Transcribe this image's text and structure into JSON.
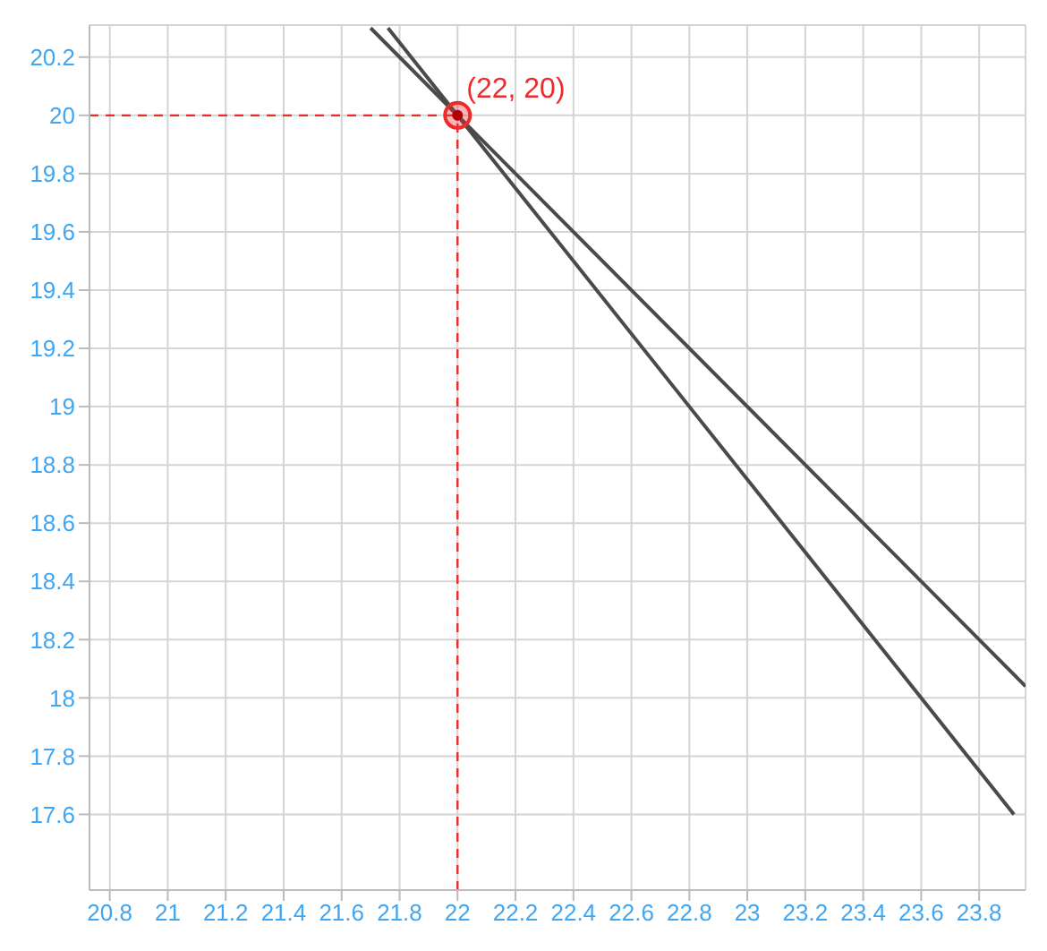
{
  "chart_data": {
    "type": "line",
    "xlim": [
      20.73,
      23.96
    ],
    "ylim": [
      17.34,
      20.31
    ],
    "xticks": [
      20.8,
      21,
      21.2,
      21.4,
      21.6,
      21.8,
      22,
      22.2,
      22.4,
      22.6,
      22.8,
      23,
      23.2,
      23.4,
      23.6,
      23.8
    ],
    "yticks": [
      17.6,
      17.8,
      18,
      18.2,
      18.4,
      18.6,
      18.8,
      19,
      19.2,
      19.4,
      19.6,
      19.8,
      20,
      20.2
    ],
    "grid": true,
    "marker": "none",
    "line_style": "solid",
    "series": [
      {
        "color": "#4a4a4a",
        "x": [
          21.7,
          23.96
        ],
        "values": [
          20.3,
          18.04
        ]
      },
      {
        "color": "#4a4a4a",
        "x": [
          21.76,
          23.92
        ],
        "values": [
          20.3,
          17.6
        ]
      },
      {
        "type": "scatter",
        "color": "#ee2b2b",
        "marker": "circle",
        "x": [
          22
        ],
        "values": [
          20
        ]
      }
    ],
    "ref_lines": [
      {
        "axis": "x",
        "value": 22,
        "color": "#ee2b2b",
        "line_style": "dashed"
      },
      {
        "axis": "y",
        "value": 20,
        "color": "#ee2b2b",
        "line_style": "dashed"
      }
    ],
    "annotations": [
      {
        "text": "(22, 20)",
        "x": 22,
        "y": 20
      }
    ]
  }
}
